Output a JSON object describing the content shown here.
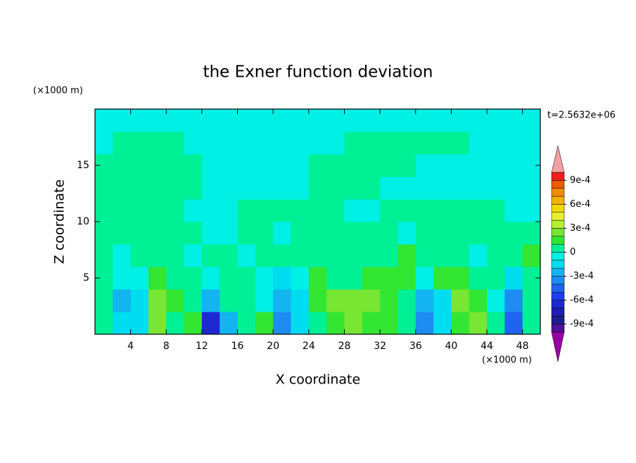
{
  "chart_data": {
    "type": "contour",
    "title": "the Exner function deviation",
    "xlabel": "X coordinate",
    "ylabel": "Z coordinate",
    "x_unit": "(×1000 m)",
    "y_unit": "(×1000 m)",
    "annotation": "t=2.5632e+06",
    "xlim": [
      0,
      50
    ],
    "ylim": [
      0,
      20
    ],
    "xticks": [
      4,
      8,
      12,
      16,
      20,
      24,
      28,
      32,
      36,
      40,
      44,
      48
    ],
    "yticks": [
      5,
      10,
      15
    ],
    "x": [
      1,
      3,
      5,
      7,
      9,
      11,
      13,
      15,
      17,
      19,
      21,
      23,
      25,
      27,
      29,
      31,
      33,
      35,
      37,
      39,
      41,
      43,
      45,
      47,
      49
    ],
    "y": [
      1,
      3,
      5,
      7,
      9,
      11,
      13,
      15,
      17,
      19
    ],
    "z": [
      [
        5e-05,
        -0.00015,
        -0.00015,
        0.00025,
        5e-05,
        0.00015,
        -0.00065,
        -0.00025,
        5e-05,
        0.00015,
        -0.00035,
        -0.00015,
        5e-05,
        0.00015,
        0.00025,
        0.00015,
        0.00015,
        5e-05,
        -0.00035,
        -0.00015,
        0.00015,
        0.00025,
        5e-05,
        -0.00045,
        5e-05
      ],
      [
        5e-05,
        -0.00025,
        -0.00015,
        0.00025,
        0.00015,
        5e-05,
        -0.00025,
        5e-05,
        5e-05,
        -5e-05,
        -0.00025,
        -0.00015,
        0.00015,
        0.00025,
        0.00025,
        0.00025,
        0.00015,
        5e-05,
        -0.00025,
        -0.00015,
        0.00025,
        0.00015,
        -5e-05,
        -0.00035,
        5e-05
      ],
      [
        5e-05,
        -5e-05,
        -5e-05,
        0.00015,
        5e-05,
        5e-05,
        -5e-05,
        5e-05,
        5e-05,
        -5e-05,
        -0.00015,
        -5e-05,
        0.00015,
        5e-05,
        5e-05,
        0.00015,
        0.00015,
        0.00015,
        -5e-05,
        0.00015,
        0.00015,
        5e-05,
        5e-05,
        -0.00015,
        5e-05
      ],
      [
        5e-05,
        -5e-05,
        5e-05,
        5e-05,
        5e-05,
        -5e-05,
        5e-05,
        5e-05,
        -5e-05,
        5e-05,
        5e-05,
        5e-05,
        5e-05,
        5e-05,
        5e-05,
        5e-05,
        5e-05,
        0.00015,
        5e-05,
        5e-05,
        5e-05,
        -5e-05,
        5e-05,
        5e-05,
        0.00015
      ],
      [
        5e-05,
        5e-05,
        5e-05,
        5e-05,
        5e-05,
        5e-05,
        -5e-05,
        -5e-05,
        5e-05,
        5e-05,
        -5e-05,
        5e-05,
        5e-05,
        5e-05,
        5e-05,
        5e-05,
        5e-05,
        -5e-05,
        5e-05,
        5e-05,
        5e-05,
        5e-05,
        5e-05,
        5e-05,
        5e-05
      ],
      [
        5e-05,
        5e-05,
        5e-05,
        5e-05,
        5e-05,
        -5e-05,
        -5e-05,
        -5e-05,
        5e-05,
        5e-05,
        5e-05,
        5e-05,
        5e-05,
        5e-05,
        -5e-05,
        -5e-05,
        5e-05,
        5e-05,
        5e-05,
        5e-05,
        5e-05,
        5e-05,
        5e-05,
        -5e-05,
        -5e-05
      ],
      [
        5e-05,
        5e-05,
        5e-05,
        5e-05,
        5e-05,
        5e-05,
        -5e-05,
        -5e-05,
        -5e-05,
        -5e-05,
        -5e-05,
        -5e-05,
        5e-05,
        5e-05,
        5e-05,
        5e-05,
        -5e-05,
        -5e-05,
        -5e-05,
        -5e-05,
        -5e-05,
        -5e-05,
        -5e-05,
        -5e-05,
        -5e-05
      ],
      [
        5e-05,
        5e-05,
        5e-05,
        5e-05,
        5e-05,
        5e-05,
        -5e-05,
        -5e-05,
        -5e-05,
        -5e-05,
        -5e-05,
        -5e-05,
        5e-05,
        5e-05,
        5e-05,
        5e-05,
        5e-05,
        5e-05,
        -5e-05,
        -5e-05,
        -5e-05,
        -5e-05,
        -5e-05,
        -5e-05,
        -5e-05
      ],
      [
        -5e-05,
        5e-05,
        5e-05,
        5e-05,
        5e-05,
        -5e-05,
        -5e-05,
        -5e-05,
        -5e-05,
        -5e-05,
        -5e-05,
        -5e-05,
        -5e-05,
        -5e-05,
        5e-05,
        5e-05,
        5e-05,
        5e-05,
        5e-05,
        5e-05,
        5e-05,
        -5e-05,
        -5e-05,
        -5e-05,
        -5e-05
      ],
      [
        -5e-05,
        -5e-05,
        -5e-05,
        -5e-05,
        -5e-05,
        -5e-05,
        -5e-05,
        -5e-05,
        -5e-05,
        -5e-05,
        -5e-05,
        -5e-05,
        -5e-05,
        -5e-05,
        -5e-05,
        -5e-05,
        -5e-05,
        -5e-05,
        -5e-05,
        -5e-05,
        -5e-05,
        -5e-05,
        -5e-05,
        -5e-05,
        -5e-05
      ]
    ],
    "levels": [
      -0.001,
      -0.0009,
      -0.0008,
      -0.0007,
      -0.0006,
      -0.0005,
      -0.0004,
      -0.0003,
      -0.0002,
      -0.0001,
      0,
      0.0001,
      0.0002,
      0.0003,
      0.0004,
      0.0005,
      0.0006,
      0.0007,
      0.0008,
      0.0009,
      0.001
    ],
    "colors": [
      "#9600a0",
      "#4b1496",
      "#1e1e8c",
      "#1e1eb4",
      "#1e28d2",
      "#1e3cf0",
      "#1e64f0",
      "#1e8cf0",
      "#14b4f0",
      "#00dcf0",
      "#00f0e6",
      "#00f096",
      "#32e632",
      "#78e632",
      "#b4f032",
      "#e6f032",
      "#f0dc00",
      "#f0b400",
      "#f08c00",
      "#f05a00",
      "#f01e1e",
      "#f0a0a0"
    ],
    "cticks": [
      {
        "value": -0.0009,
        "label": "-9e-4"
      },
      {
        "value": -0.0006,
        "label": "-6e-4"
      },
      {
        "value": -0.0003,
        "label": "-3e-4"
      },
      0,
      {
        "value": 0.0003,
        "label": "3e-4"
      },
      {
        "value": 0.0006,
        "label": "6e-4"
      },
      {
        "value": 0.0009,
        "label": "9e-4"
      }
    ]
  }
}
